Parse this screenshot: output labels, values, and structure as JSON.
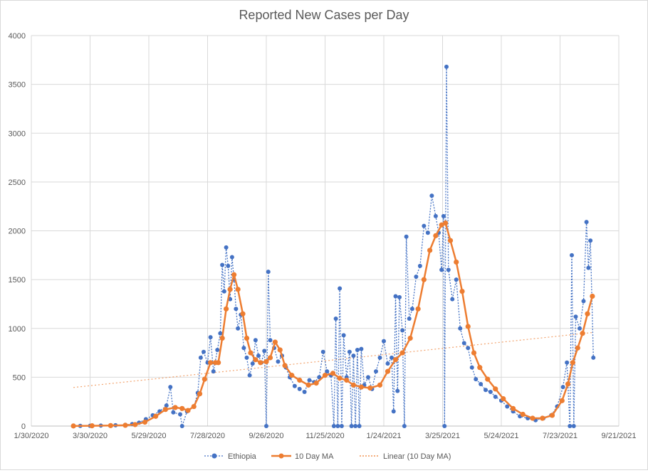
{
  "chart_data": {
    "type": "line",
    "title": "Reported New Cases per Day",
    "xlabel": "",
    "ylabel": "",
    "ylim": [
      0,
      4000
    ],
    "yticks": [
      0,
      500,
      1000,
      1500,
      2000,
      2500,
      3000,
      3500,
      4000
    ],
    "xlim_dates": [
      "1/30/2020",
      "9/21/2021"
    ],
    "xtick_labels": [
      "1/30/2020",
      "3/30/2020",
      "5/29/2020",
      "7/28/2020",
      "9/26/2020",
      "11/25/2020",
      "1/24/2021",
      "3/25/2021",
      "5/24/2021",
      "7/23/2021",
      "9/21/2021"
    ],
    "grid": true,
    "legend_position": "bottom",
    "series": [
      {
        "name": "Ethiopia",
        "style": "dotted-line-markers",
        "color": "#4472c4",
        "points": [
          [
            "3/13/2020",
            1
          ],
          [
            "3/20/2020",
            2
          ],
          [
            "3/30/2020",
            3
          ],
          [
            "4/10/2020",
            5
          ],
          [
            "4/25/2020",
            8
          ],
          [
            "5/5/2020",
            12
          ],
          [
            "5/12/2020",
            20
          ],
          [
            "5/19/2020",
            35
          ],
          [
            "5/26/2020",
            70
          ],
          [
            "6/2/2020",
            110
          ],
          [
            "6/9/2020",
            150
          ],
          [
            "6/16/2020",
            210
          ],
          [
            "6/20/2020",
            400
          ],
          [
            "6/23/2020",
            140
          ],
          [
            "6/30/2020",
            120
          ],
          [
            "7/2/2020",
            0
          ],
          [
            "7/7/2020",
            150
          ],
          [
            "7/14/2020",
            200
          ],
          [
            "7/18/2020",
            340
          ],
          [
            "7/21/2020",
            700
          ],
          [
            "7/24/2020",
            760
          ],
          [
            "7/28/2020",
            650
          ],
          [
            "7/31/2020",
            910
          ],
          [
            "8/3/2020",
            560
          ],
          [
            "8/7/2020",
            780
          ],
          [
            "8/10/2020",
            950
          ],
          [
            "8/12/2020",
            1650
          ],
          [
            "8/14/2020",
            1380
          ],
          [
            "8/16/2020",
            1830
          ],
          [
            "8/18/2020",
            1640
          ],
          [
            "8/20/2020",
            1300
          ],
          [
            "8/22/2020",
            1730
          ],
          [
            "8/24/2020",
            1500
          ],
          [
            "8/26/2020",
            1200
          ],
          [
            "8/28/2020",
            1000
          ],
          [
            "8/31/2020",
            1140
          ],
          [
            "9/3/2020",
            800
          ],
          [
            "9/6/2020",
            700
          ],
          [
            "9/9/2020",
            520
          ],
          [
            "9/12/2020",
            640
          ],
          [
            "9/15/2020",
            880
          ],
          [
            "9/18/2020",
            720
          ],
          [
            "9/21/2020",
            650
          ],
          [
            "9/24/2020",
            770
          ],
          [
            "9/26/2020",
            0
          ],
          [
            "9/28/2020",
            1580
          ],
          [
            "9/30/2020",
            880
          ],
          [
            "10/4/2020",
            800
          ],
          [
            "10/8/2020",
            660
          ],
          [
            "10/12/2020",
            720
          ],
          [
            "10/16/2020",
            600
          ],
          [
            "10/20/2020",
            500
          ],
          [
            "10/25/2020",
            410
          ],
          [
            "10/30/2020",
            380
          ],
          [
            "11/4/2020",
            350
          ],
          [
            "11/9/2020",
            470
          ],
          [
            "11/14/2020",
            450
          ],
          [
            "11/19/2020",
            500
          ],
          [
            "11/23/2020",
            760
          ],
          [
            "11/27/2020",
            560
          ],
          [
            "12/1/2020",
            520
          ],
          [
            "12/4/2020",
            0
          ],
          [
            "12/6/2020",
            1100
          ],
          [
            "12/8/2020",
            0
          ],
          [
            "12/10/2020",
            1410
          ],
          [
            "12/12/2020",
            0
          ],
          [
            "12/14/2020",
            930
          ],
          [
            "12/17/2020",
            500
          ],
          [
            "12/20/2020",
            760
          ],
          [
            "12/22/2020",
            0
          ],
          [
            "12/24/2020",
            720
          ],
          [
            "12/26/2020",
            0
          ],
          [
            "12/28/2020",
            780
          ],
          [
            "12/30/2020",
            0
          ],
          [
            "1/1/2021",
            790
          ],
          [
            "1/4/2021",
            420
          ],
          [
            "1/8/2021",
            500
          ],
          [
            "1/12/2021",
            380
          ],
          [
            "1/16/2021",
            560
          ],
          [
            "1/20/2021",
            700
          ],
          [
            "1/24/2021",
            870
          ],
          [
            "1/28/2021",
            640
          ],
          [
            "2/1/2021",
            700
          ],
          [
            "2/3/2021",
            150
          ],
          [
            "2/5/2021",
            1330
          ],
          [
            "2/7/2021",
            360
          ],
          [
            "2/9/2021",
            1320
          ],
          [
            "2/12/2021",
            980
          ],
          [
            "2/14/2021",
            0
          ],
          [
            "2/16/2021",
            1940
          ],
          [
            "2/19/2021",
            1100
          ],
          [
            "2/22/2021",
            1200
          ],
          [
            "2/26/2021",
            1530
          ],
          [
            "3/2/2021",
            1640
          ],
          [
            "3/6/2021",
            2050
          ],
          [
            "3/10/2021",
            1980
          ],
          [
            "3/14/2021",
            2360
          ],
          [
            "3/18/2021",
            2150
          ],
          [
            "3/21/2021",
            1980
          ],
          [
            "3/24/2021",
            1600
          ],
          [
            "3/26/2021",
            2150
          ],
          [
            "3/27/2021",
            0
          ],
          [
            "3/29/2021",
            3680
          ],
          [
            "3/31/2021",
            1600
          ],
          [
            "4/4/2021",
            1300
          ],
          [
            "4/8/2021",
            1500
          ],
          [
            "4/12/2021",
            1000
          ],
          [
            "4/16/2021",
            850
          ],
          [
            "4/20/2021",
            800
          ],
          [
            "4/24/2021",
            600
          ],
          [
            "4/28/2021",
            480
          ],
          [
            "5/3/2021",
            430
          ],
          [
            "5/8/2021",
            370
          ],
          [
            "5/13/2021",
            350
          ],
          [
            "5/18/2021",
            300
          ],
          [
            "5/24/2021",
            260
          ],
          [
            "5/30/2021",
            200
          ],
          [
            "6/5/2021",
            150
          ],
          [
            "6/12/2021",
            100
          ],
          [
            "6/20/2021",
            80
          ],
          [
            "6/28/2021",
            60
          ],
          [
            "7/6/2021",
            80
          ],
          [
            "7/14/2021",
            110
          ],
          [
            "7/20/2021",
            200
          ],
          [
            "7/26/2021",
            400
          ],
          [
            "7/30/2021",
            650
          ],
          [
            "8/2/2021",
            0
          ],
          [
            "8/4/2021",
            1750
          ],
          [
            "8/6/2021",
            0
          ],
          [
            "8/8/2021",
            1120
          ],
          [
            "8/12/2021",
            1000
          ],
          [
            "8/16/2021",
            1280
          ],
          [
            "8/19/2021",
            2090
          ],
          [
            "8/21/2021",
            1620
          ],
          [
            "8/23/2021",
            1900
          ],
          [
            "8/26/2021",
            700
          ]
        ]
      },
      {
        "name": "10 Day MA",
        "style": "solid-line-markers",
        "color": "#ed7d31",
        "points": [
          [
            "3/13/2020",
            1
          ],
          [
            "4/1/2020",
            3
          ],
          [
            "4/20/2020",
            5
          ],
          [
            "5/5/2020",
            8
          ],
          [
            "5/15/2020",
            15
          ],
          [
            "5/25/2020",
            40
          ],
          [
            "6/5/2020",
            100
          ],
          [
            "6/15/2020",
            170
          ],
          [
            "6/25/2020",
            190
          ],
          [
            "7/2/2020",
            180
          ],
          [
            "7/8/2020",
            160
          ],
          [
            "7/14/2020",
            200
          ],
          [
            "7/20/2020",
            330
          ],
          [
            "7/25/2020",
            480
          ],
          [
            "7/31/2020",
            650
          ],
          [
            "8/5/2020",
            650
          ],
          [
            "8/8/2020",
            650
          ],
          [
            "8/12/2020",
            900
          ],
          [
            "8/16/2020",
            1200
          ],
          [
            "8/20/2020",
            1400
          ],
          [
            "8/24/2020",
            1550
          ],
          [
            "8/28/2020",
            1400
          ],
          [
            "9/2/2020",
            1150
          ],
          [
            "9/6/2020",
            900
          ],
          [
            "9/10/2020",
            750
          ],
          [
            "9/15/2020",
            680
          ],
          [
            "9/20/2020",
            650
          ],
          [
            "9/26/2020",
            660
          ],
          [
            "9/30/2020",
            700
          ],
          [
            "10/5/2020",
            860
          ],
          [
            "10/10/2020",
            780
          ],
          [
            "10/15/2020",
            620
          ],
          [
            "10/22/2020",
            520
          ],
          [
            "10/30/2020",
            470
          ],
          [
            "11/8/2020",
            420
          ],
          [
            "11/16/2020",
            440
          ],
          [
            "11/25/2020",
            520
          ],
          [
            "12/3/2020",
            540
          ],
          [
            "12/10/2020",
            490
          ],
          [
            "12/17/2020",
            470
          ],
          [
            "12/24/2020",
            420
          ],
          [
            "1/1/2021",
            400
          ],
          [
            "1/10/2021",
            390
          ],
          [
            "1/20/2021",
            420
          ],
          [
            "1/28/2021",
            560
          ],
          [
            "2/5/2021",
            680
          ],
          [
            "2/12/2021",
            750
          ],
          [
            "2/20/2021",
            900
          ],
          [
            "2/28/2021",
            1200
          ],
          [
            "3/6/2021",
            1500
          ],
          [
            "3/12/2021",
            1800
          ],
          [
            "3/18/2021",
            1950
          ],
          [
            "3/24/2021",
            2060
          ],
          [
            "3/28/2021",
            2080
          ],
          [
            "4/2/2021",
            1900
          ],
          [
            "4/8/2021",
            1680
          ],
          [
            "4/14/2021",
            1380
          ],
          [
            "4/20/2021",
            1020
          ],
          [
            "4/26/2021",
            750
          ],
          [
            "5/2/2021",
            600
          ],
          [
            "5/10/2021",
            480
          ],
          [
            "5/18/2021",
            380
          ],
          [
            "5/26/2021",
            280
          ],
          [
            "6/5/2021",
            180
          ],
          [
            "6/15/2021",
            120
          ],
          [
            "6/25/2021",
            80
          ],
          [
            "7/5/2021",
            80
          ],
          [
            "7/15/2021",
            110
          ],
          [
            "7/25/2021",
            260
          ],
          [
            "7/31/2021",
            430
          ],
          [
            "8/5/2021",
            650
          ],
          [
            "8/10/2021",
            800
          ],
          [
            "8/15/2021",
            950
          ],
          [
            "8/20/2021",
            1150
          ],
          [
            "8/25/2021",
            1330
          ]
        ]
      }
    ],
    "legend": [
      {
        "label": "Ethiopia",
        "style": "dotted-line-markers",
        "color": "#4472c4"
      },
      {
        "label": "10 Day MA",
        "style": "solid-line-markers",
        "color": "#ed7d31"
      },
      {
        "label": "Linear (10 Day MA)",
        "style": "dotted-line",
        "color": "#ed7d31"
      }
    ]
  }
}
